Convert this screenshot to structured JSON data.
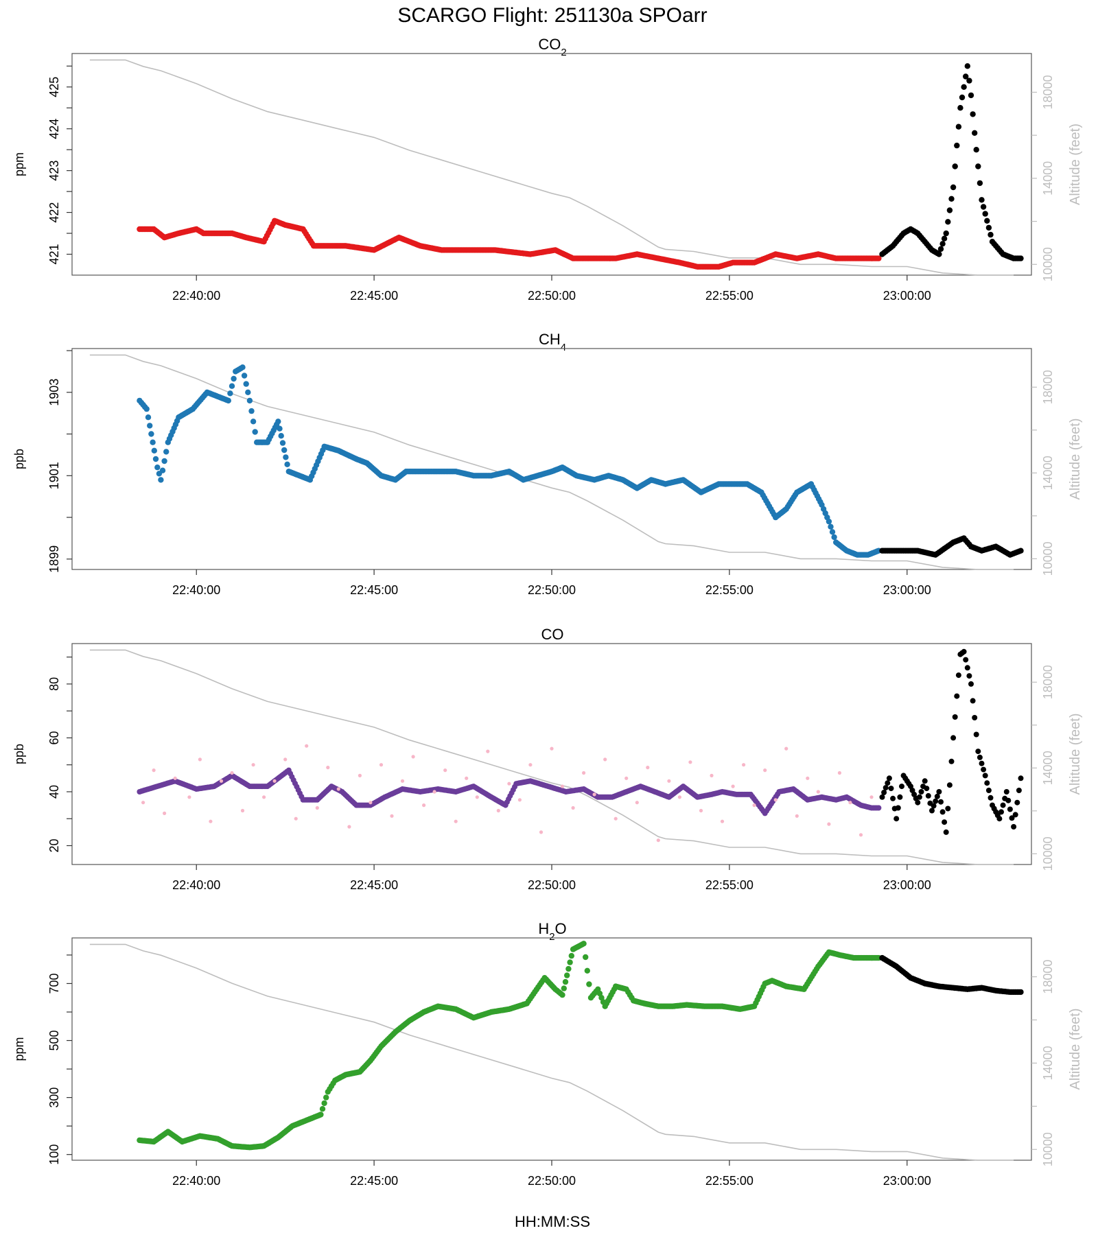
{
  "title": "SCARGO Flight: 251130a  SPOarr",
  "x_label": "HH:MM:SS",
  "time_tick_labels": [
    "22:40:00",
    "22:45:00",
    "22:50:00",
    "22:55:00",
    "23:00:00"
  ],
  "altitude_axis": {
    "label": "Altitude (feet)",
    "tick_labels": [
      "10000",
      "14000",
      "18000"
    ],
    "color": "#bdbdbd"
  },
  "panels": [
    {
      "key": "co2",
      "title_main": "CO",
      "title_sub": "2",
      "ylabel": "ppm",
      "y_tick_labels": [
        "421",
        "422",
        "423",
        "424",
        "425"
      ]
    },
    {
      "key": "ch4",
      "title_main": "CH",
      "title_sub": "4",
      "ylabel": "ppb",
      "y_tick_labels": [
        "1899",
        "1901",
        "1903"
      ]
    },
    {
      "key": "co",
      "title_main": "CO",
      "title_sub": "",
      "ylabel": "ppb",
      "y_tick_labels": [
        "20",
        "40",
        "60",
        "80"
      ]
    },
    {
      "key": "h2o",
      "title_main": "H",
      "title_sub": "2",
      "title_tail": "O",
      "ylabel": "ppm",
      "y_tick_labels": [
        "100",
        "300",
        "500",
        "700"
      ]
    }
  ],
  "chart_data": [
    {
      "type": "scatter",
      "title": "CO2",
      "xlabel": "HH:MM:SS",
      "ylabel": "ppm",
      "xlim_minutes_after_22_00": [
        36.5,
        63.5
      ],
      "ylim": [
        420.5,
        425.8
      ],
      "y2label": "Altitude (feet)",
      "y2lim": [
        9500,
        19800
      ],
      "colors": {
        "main": "#e41a1c",
        "after": "#000000",
        "altitude": "#bdbdbd"
      },
      "series": [
        {
          "name": "CO2 (red)",
          "x": [
            38.4,
            38.8,
            39.1,
            39.5,
            40.0,
            40.2,
            40.6,
            41.0,
            41.4,
            41.9,
            42.2,
            42.5,
            43.0,
            43.3,
            43.6,
            44.2,
            45.0,
            45.7,
            46.3,
            46.9,
            47.6,
            48.4,
            49.4,
            50.1,
            50.6,
            51.3,
            51.8,
            52.4,
            53.0,
            53.6,
            54.1,
            54.7,
            55.1,
            55.7,
            56.3,
            56.9,
            57.5,
            58.0,
            58.5,
            58.9,
            59.2
          ],
          "y": [
            421.6,
            421.6,
            421.4,
            421.5,
            421.6,
            421.5,
            421.5,
            421.5,
            421.4,
            421.3,
            421.8,
            421.7,
            421.6,
            421.2,
            421.2,
            421.2,
            421.1,
            421.4,
            421.2,
            421.1,
            421.1,
            421.1,
            421.0,
            421.1,
            420.9,
            420.9,
            420.9,
            421.0,
            420.9,
            420.8,
            420.7,
            420.7,
            420.8,
            420.8,
            421.0,
            420.9,
            421.0,
            420.9,
            420.9,
            420.9,
            420.9
          ]
        },
        {
          "name": "CO2 (black, after 22:59)",
          "x": [
            59.3,
            59.6,
            59.9,
            60.1,
            60.3,
            60.5,
            60.7,
            60.9,
            61.1,
            61.3,
            61.4,
            61.5,
            61.6,
            61.7,
            61.8,
            61.9,
            62.1,
            62.4,
            62.7,
            63.0,
            63.2
          ],
          "y": [
            421.0,
            421.2,
            421.5,
            421.6,
            421.5,
            421.3,
            421.1,
            421.0,
            421.5,
            422.6,
            423.6,
            424.5,
            425.0,
            425.5,
            424.8,
            423.9,
            422.3,
            421.3,
            421.0,
            420.9,
            420.9
          ]
        }
      ]
    },
    {
      "type": "scatter",
      "title": "CH4",
      "xlabel": "HH:MM:SS",
      "ylabel": "ppb",
      "xlim_minutes_after_22_00": [
        36.5,
        63.5
      ],
      "ylim": [
        1898.75,
        1904.05
      ],
      "colors": {
        "main": "#1f78b4",
        "after": "#000000",
        "altitude": "#bdbdbd"
      },
      "series": [
        {
          "name": "CH4 (blue)",
          "x": [
            38.4,
            38.6,
            38.9,
            39.0,
            39.2,
            39.5,
            39.9,
            40.3,
            40.6,
            40.9,
            41.1,
            41.3,
            41.5,
            41.7,
            42.0,
            42.3,
            42.6,
            42.9,
            43.2,
            43.6,
            44.0,
            44.5,
            44.8,
            45.2,
            45.6,
            45.9,
            46.3,
            46.8,
            47.3,
            47.8,
            48.3,
            48.8,
            49.2,
            49.6,
            50.0,
            50.3,
            50.7,
            51.2,
            51.6,
            52.0,
            52.4,
            52.8,
            53.2,
            53.7,
            54.2,
            54.7,
            55.1,
            55.5,
            55.9,
            56.3,
            56.6,
            56.9,
            57.3,
            57.6,
            57.8,
            58.0,
            58.3,
            58.6,
            58.9,
            59.2
          ],
          "y": [
            1902.8,
            1902.6,
            1901.2,
            1900.9,
            1901.8,
            1902.4,
            1902.6,
            1903.0,
            1902.9,
            1902.8,
            1903.5,
            1903.6,
            1902.8,
            1901.8,
            1901.8,
            1902.3,
            1901.1,
            1901.0,
            1900.9,
            1901.7,
            1901.6,
            1901.4,
            1901.3,
            1901.0,
            1900.9,
            1901.1,
            1901.1,
            1901.1,
            1901.1,
            1901.0,
            1901.0,
            1901.1,
            1900.9,
            1901.0,
            1901.1,
            1901.2,
            1901.0,
            1900.9,
            1901.0,
            1900.9,
            1900.7,
            1900.9,
            1900.8,
            1900.9,
            1900.6,
            1900.8,
            1900.8,
            1900.8,
            1900.6,
            1900.0,
            1900.2,
            1900.6,
            1900.8,
            1900.3,
            1899.9,
            1899.4,
            1899.2,
            1899.1,
            1899.1,
            1899.2
          ]
        },
        {
          "name": "CH4 (black, after 22:59)",
          "x": [
            59.3,
            59.8,
            60.3,
            60.8,
            61.3,
            61.6,
            61.8,
            62.1,
            62.5,
            62.9,
            63.2
          ],
          "y": [
            1899.2,
            1899.2,
            1899.2,
            1899.1,
            1899.4,
            1899.5,
            1899.3,
            1899.2,
            1899.3,
            1899.1,
            1899.2
          ]
        }
      ]
    },
    {
      "type": "scatter",
      "title": "CO",
      "xlabel": "HH:MM:SS",
      "ylabel": "ppb",
      "xlim_minutes_after_22_00": [
        36.5,
        63.5
      ],
      "ylim": [
        13,
        95
      ],
      "colors": {
        "main": "#6a3d9a",
        "raw": "#f7b6c8",
        "after": "#000000",
        "altitude": "#bdbdbd"
      },
      "series": [
        {
          "name": "CO (purple, averaged)",
          "x": [
            38.4,
            38.9,
            39.4,
            40.0,
            40.5,
            41.0,
            41.5,
            42.0,
            42.4,
            42.6,
            43.0,
            43.4,
            43.8,
            44.1,
            44.5,
            44.9,
            45.3,
            45.8,
            46.3,
            46.8,
            47.3,
            47.8,
            48.3,
            48.7,
            49.0,
            49.4,
            49.9,
            50.4,
            50.9,
            51.3,
            51.7,
            52.1,
            52.5,
            52.9,
            53.3,
            53.7,
            54.1,
            54.5,
            54.8,
            55.2,
            55.6,
            56.0,
            56.4,
            56.8,
            57.2,
            57.6,
            58.0,
            58.3,
            58.7,
            59.0,
            59.2
          ],
          "y": [
            40,
            42,
            44,
            41,
            42,
            46,
            42,
            42,
            46,
            48,
            37,
            37,
            42,
            40,
            35,
            35,
            38,
            41,
            40,
            41,
            40,
            42,
            38,
            35,
            43,
            44,
            42,
            40,
            41,
            38,
            38,
            40,
            42,
            40,
            38,
            42,
            38,
            39,
            40,
            39,
            39,
            32,
            40,
            41,
            37,
            38,
            37,
            38,
            35,
            34,
            34
          ]
        },
        {
          "name": "CO (pink, raw)",
          "x": [
            38.5,
            38.8,
            39.1,
            39.4,
            39.8,
            40.1,
            40.4,
            40.7,
            41.0,
            41.3,
            41.6,
            41.9,
            42.2,
            42.5,
            42.8,
            43.1,
            43.4,
            43.7,
            44.0,
            44.3,
            44.6,
            44.9,
            45.2,
            45.5,
            45.8,
            46.1,
            46.4,
            46.7,
            47.0,
            47.3,
            47.6,
            47.9,
            48.2,
            48.5,
            48.8,
            49.1,
            49.4,
            49.7,
            50.0,
            50.3,
            50.6,
            50.9,
            51.2,
            51.5,
            51.8,
            52.1,
            52.4,
            52.7,
            53.0,
            53.3,
            53.6,
            53.9,
            54.2,
            54.5,
            54.8,
            55.1,
            55.4,
            55.7,
            56.0,
            56.3,
            56.6,
            56.9,
            57.2,
            57.5,
            57.8,
            58.1,
            58.4,
            58.7,
            59.0
          ],
          "y": [
            36,
            48,
            32,
            45,
            38,
            52,
            29,
            44,
            47,
            33,
            50,
            38,
            44,
            52,
            30,
            57,
            34,
            49,
            41,
            27,
            46,
            36,
            50,
            31,
            44,
            53,
            35,
            40,
            48,
            29,
            45,
            38,
            55,
            33,
            43,
            37,
            50,
            25,
            56,
            42,
            34,
            47,
            39,
            52,
            30,
            45,
            36,
            49,
            22,
            44,
            38,
            51,
            33,
            46,
            29,
            42,
            50,
            35,
            48,
            37,
            56,
            31,
            45,
            40,
            28,
            47,
            36,
            24,
            38
          ]
        },
        {
          "name": "CO (black, after 22:59)",
          "x": [
            59.3,
            59.5,
            59.7,
            59.9,
            60.1,
            60.3,
            60.5,
            60.7,
            60.9,
            61.1,
            61.3,
            61.5,
            61.6,
            61.8,
            62.0,
            62.2,
            62.4,
            62.6,
            62.8,
            63.0,
            63.2
          ],
          "y": [
            38,
            45,
            30,
            46,
            42,
            36,
            44,
            33,
            40,
            25,
            60,
            91,
            92,
            80,
            55,
            46,
            35,
            30,
            40,
            27,
            45
          ]
        }
      ]
    },
    {
      "type": "scatter",
      "title": "H2O",
      "xlabel": "HH:MM:SS",
      "ylabel": "ppm",
      "xlim_minutes_after_22_00": [
        36.5,
        63.5
      ],
      "ylim": [
        80,
        860
      ],
      "colors": {
        "main": "#33a02c",
        "after": "#000000",
        "altitude": "#bdbdbd"
      },
      "series": [
        {
          "name": "H2O (green)",
          "x": [
            38.4,
            38.8,
            39.2,
            39.6,
            40.1,
            40.6,
            41.0,
            41.5,
            41.9,
            42.3,
            42.7,
            43.1,
            43.5,
            43.7,
            43.9,
            44.2,
            44.6,
            44.9,
            45.2,
            45.6,
            46.0,
            46.4,
            46.8,
            47.3,
            47.8,
            48.3,
            48.8,
            49.3,
            49.8,
            50.1,
            50.3,
            50.6,
            50.9,
            51.1,
            51.3,
            51.5,
            51.8,
            52.1,
            52.3,
            52.6,
            53.0,
            53.4,
            53.8,
            54.3,
            54.8,
            55.3,
            55.7,
            56.0,
            56.2,
            56.6,
            57.1,
            57.5,
            57.8,
            58.1,
            58.5,
            58.9,
            59.2
          ],
          "y": [
            150,
            145,
            180,
            145,
            165,
            155,
            130,
            125,
            130,
            160,
            200,
            220,
            240,
            320,
            360,
            380,
            390,
            430,
            480,
            530,
            570,
            600,
            620,
            610,
            580,
            600,
            610,
            630,
            720,
            680,
            660,
            820,
            840,
            650,
            680,
            620,
            690,
            680,
            640,
            630,
            620,
            620,
            625,
            620,
            620,
            610,
            620,
            700,
            710,
            690,
            680,
            760,
            810,
            800,
            790,
            790,
            790
          ]
        },
        {
          "name": "H2O (black, after 22:59)",
          "x": [
            59.3,
            59.7,
            60.1,
            60.5,
            60.9,
            61.3,
            61.7,
            62.1,
            62.5,
            62.9,
            63.2
          ],
          "y": [
            790,
            760,
            720,
            700,
            690,
            685,
            680,
            685,
            675,
            670,
            670
          ]
        }
      ]
    },
    {
      "type": "line",
      "title": "Altitude (feet) overlay (same in all panels)",
      "ylabel": "Altitude (feet)",
      "x": [
        37.0,
        38.0,
        38.5,
        39.0,
        40.0,
        41.0,
        42.0,
        43.0,
        44.0,
        45.0,
        46.0,
        47.0,
        48.0,
        49.0,
        50.0,
        50.5,
        51.0,
        52.0,
        53.0,
        53.2,
        54.0,
        55.0,
        56.0,
        57.0,
        58.0,
        59.0,
        60.0,
        61.0,
        62.0,
        63.0
      ],
      "y": [
        19500,
        19500,
        19200,
        19000,
        18400,
        17700,
        17100,
        16700,
        16300,
        15900,
        15300,
        14800,
        14300,
        13800,
        13300,
        13100,
        12700,
        11800,
        10800,
        10700,
        10600,
        10300,
        10300,
        10000,
        10000,
        9900,
        9900,
        9600,
        9500,
        9500
      ]
    }
  ]
}
